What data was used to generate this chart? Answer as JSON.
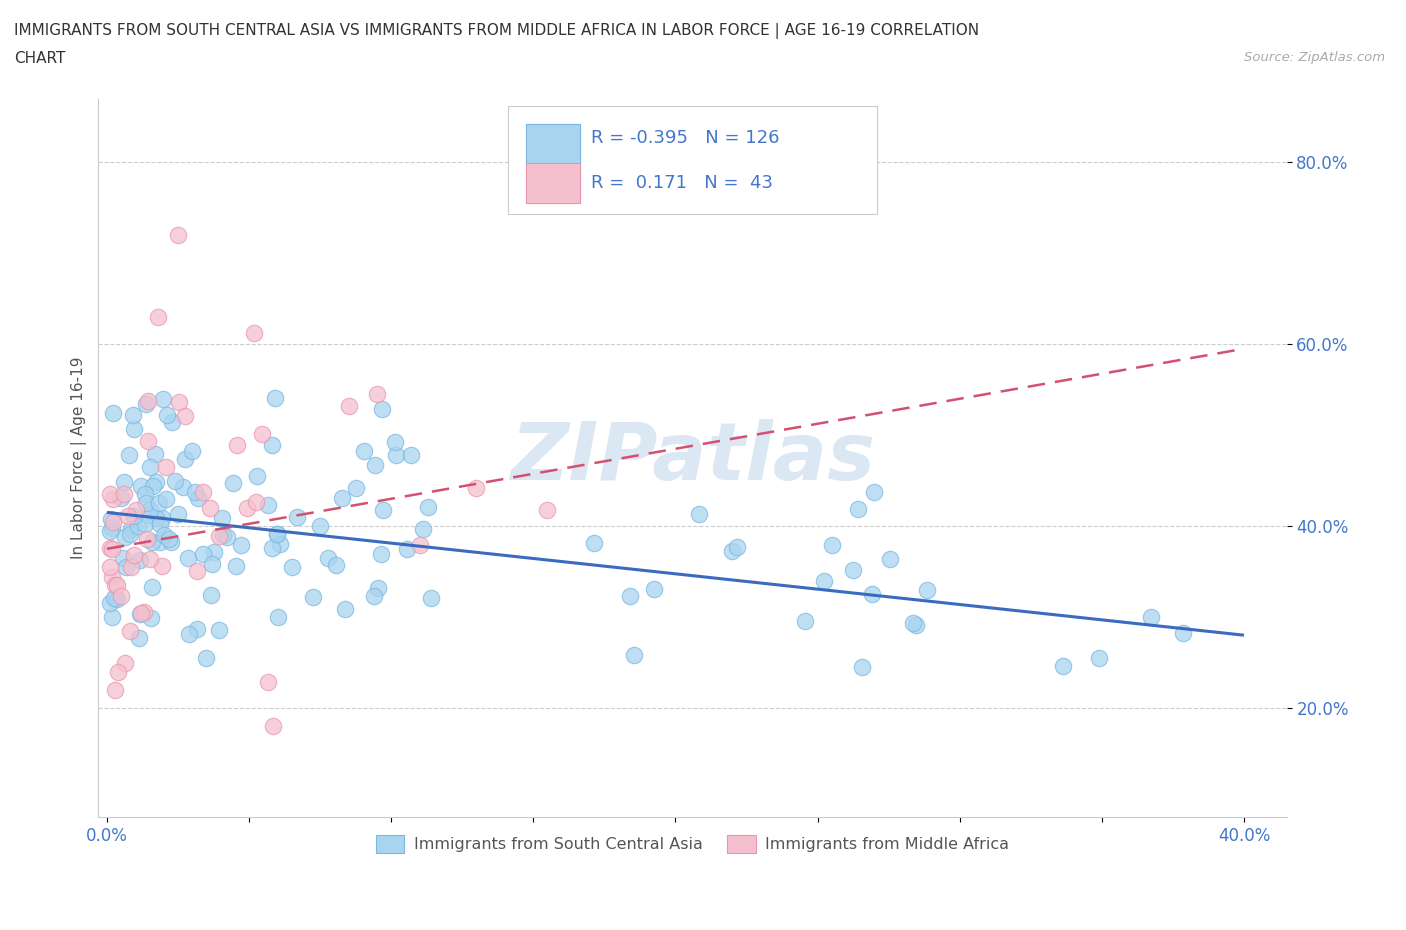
{
  "title_line1": "IMMIGRANTS FROM SOUTH CENTRAL ASIA VS IMMIGRANTS FROM MIDDLE AFRICA IN LABOR FORCE | AGE 16-19 CORRELATION",
  "title_line2": "CHART",
  "source_text": "Source: ZipAtlas.com",
  "ylabel": "In Labor Force | Age 16-19",
  "xlim": [
    -0.003,
    0.415
  ],
  "ylim": [
    0.08,
    0.87
  ],
  "xtick_positions": [
    0.0,
    0.05,
    0.1,
    0.15,
    0.2,
    0.25,
    0.3,
    0.35,
    0.4
  ],
  "xticklabels": [
    "0.0%",
    "",
    "",
    "",
    "",
    "",
    "",
    "",
    "40.0%"
  ],
  "ytick_positions": [
    0.2,
    0.4,
    0.6,
    0.8
  ],
  "ytick_labels": [
    "20.0%",
    "40.0%",
    "60.0%",
    "80.0%"
  ],
  "blue_color": "#a8d4f0",
  "blue_edge_color": "#7ab8e0",
  "pink_color": "#f5c0ce",
  "pink_edge_color": "#e896ad",
  "blue_line_color": "#3a6bbf",
  "pink_line_color": "#d45070",
  "legend_text_color": "#4477cc",
  "watermark_color": "#c5d8ee",
  "R_blue": -0.395,
  "N_blue": 126,
  "R_pink": 0.171,
  "N_pink": 43,
  "blue_trend_x": [
    0.0,
    0.4
  ],
  "blue_trend_y": [
    0.415,
    0.28
  ],
  "pink_trend_x": [
    0.0,
    0.4
  ],
  "pink_trend_y": [
    0.375,
    0.595
  ]
}
